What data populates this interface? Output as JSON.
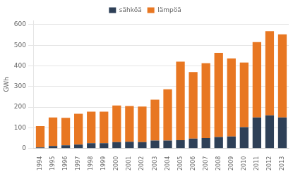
{
  "chart_data": {
    "type": "bar",
    "stacked": true,
    "ylabel": "GWh",
    "categories": [
      "1994",
      "1995",
      "1996",
      "1997",
      "1998",
      "1999",
      "2000",
      "2001",
      "2002",
      "2003",
      "2004",
      "2005",
      "2006",
      "2007",
      "2008",
      "2009",
      "2010",
      "2011",
      "2012",
      "2013"
    ],
    "series": [
      {
        "name": "sähköä",
        "color": "#2e4057",
        "values": [
          5,
          12,
          15,
          18,
          25,
          25,
          30,
          32,
          30,
          38,
          38,
          40,
          47,
          50,
          55,
          58,
          103,
          150,
          160,
          150
        ]
      },
      {
        "name": "lämpöä",
        "color": "#e87722",
        "values": [
          103,
          138,
          133,
          150,
          153,
          153,
          178,
          173,
          173,
          198,
          248,
          380,
          323,
          363,
          408,
          378,
          313,
          365,
          408,
          403
        ]
      }
    ],
    "ylim": [
      0,
      620
    ],
    "yticks": [
      0,
      100,
      200,
      300,
      400,
      500,
      600
    ],
    "grid": true,
    "legend": "top"
  }
}
